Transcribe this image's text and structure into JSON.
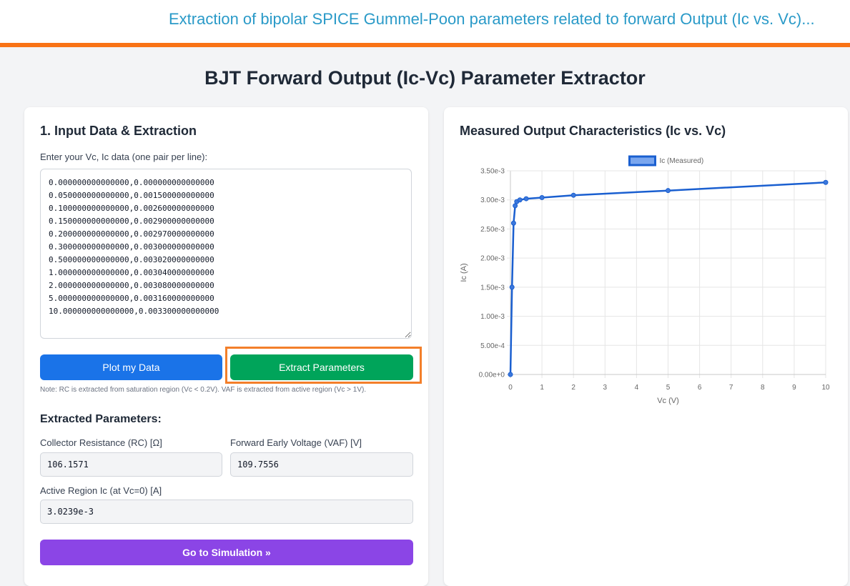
{
  "doc_title": "Extraction of bipolar SPICE Gummel-Poon parameters related to forward Output (Ic vs. Vc)...",
  "page_title": "BJT Forward Output (Ic-Vc) Parameter Extractor",
  "input_panel": {
    "title": "1. Input Data & Extraction",
    "textarea_label": "Enter your Vc, Ic data (one pair per line):",
    "textarea_value": "0.000000000000000,0.000000000000000\n0.050000000000000,0.001500000000000\n0.100000000000000,0.002600000000000\n0.150000000000000,0.002900000000000\n0.200000000000000,0.002970000000000\n0.300000000000000,0.003000000000000\n0.500000000000000,0.003020000000000\n1.000000000000000,0.003040000000000\n2.000000000000000,0.003080000000000\n5.000000000000000,0.003160000000000\n10.000000000000000,0.003300000000000",
    "plot_button": "Plot my Data",
    "extract_button": "Extract Parameters",
    "note": "Note: RC is extracted from saturation region (Vc < 0.2V). VAF is extracted from active region (Vc > 1V).",
    "extracted_title": "Extracted Parameters:",
    "rc_label": "Collector Resistance (RC) [Ω]",
    "rc_value": "106.1571",
    "vaf_label": "Forward Early Voltage (VAF) [V]",
    "vaf_value": "109.7556",
    "ic_label": "Active Region Ic (at Vc=0) [A]",
    "ic_value": "3.0239e-3",
    "sim_button": "Go to Simulation »"
  },
  "chart_panel": {
    "title": "Measured Output Characteristics (Ic vs. Vc)"
  },
  "colors": {
    "accent_orange": "#f97316",
    "title_blue": "#2a9ac8",
    "plot_button": "#1a73e8",
    "extract_button": "#00a45a",
    "sim_button": "#8b45e6",
    "series_line": "#1a5fd0",
    "highlight": "#f37f2a"
  },
  "chart_data": {
    "type": "line",
    "xlabel": "Vc (V)",
    "ylabel": "Ic (A)",
    "legend_position": "top",
    "grid": true,
    "xlim": [
      0,
      10
    ],
    "ylim": [
      0,
      0.0035
    ],
    "x_ticks": [
      "0",
      "1",
      "2",
      "3",
      "4",
      "5",
      "6",
      "7",
      "8",
      "9",
      "10"
    ],
    "y_ticks": [
      "0.00e+0",
      "5.00e-4",
      "1.00e-3",
      "1.50e-3",
      "2.00e-3",
      "2.50e-3",
      "3.00e-3",
      "3.50e-3"
    ],
    "series": [
      {
        "name": "Ic (Measured)",
        "x": [
          0,
          0.05,
          0.1,
          0.15,
          0.2,
          0.3,
          0.5,
          1,
          2,
          5,
          10
        ],
        "y": [
          0,
          0.0015,
          0.0026,
          0.0029,
          0.00297,
          0.003,
          0.00302,
          0.00304,
          0.00308,
          0.00316,
          0.0033
        ]
      }
    ]
  }
}
